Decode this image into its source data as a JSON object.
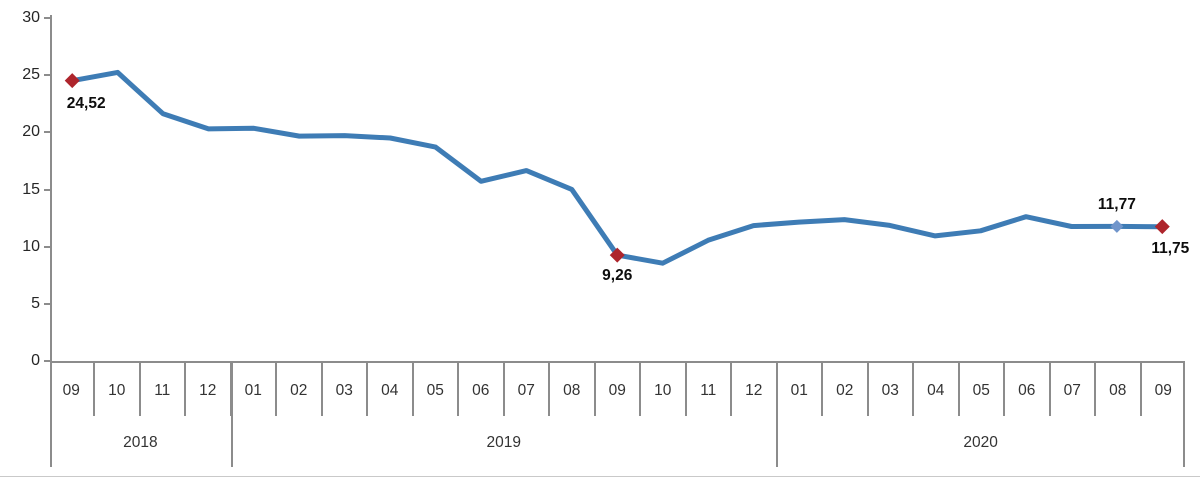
{
  "chart_data": {
    "type": "line",
    "title": "",
    "xlabel": "",
    "ylabel": "",
    "ylim": [
      0,
      30
    ],
    "yticks": [
      0,
      5,
      10,
      15,
      20,
      25,
      30
    ],
    "grid": false,
    "legend": "none",
    "colors": {
      "line": "#3E7CB5",
      "marker_red": "#AE252C",
      "marker_blue": "#7095CB",
      "axis": "#8C8C8C",
      "tick_text": "#262626",
      "label_text": "#0D0D0D"
    },
    "groups": [
      {
        "year": "2018",
        "months": [
          "09",
          "10",
          "11",
          "12"
        ]
      },
      {
        "year": "2019",
        "months": [
          "01",
          "02",
          "03",
          "04",
          "05",
          "06",
          "07",
          "08",
          "09",
          "10",
          "11",
          "12"
        ]
      },
      {
        "year": "2020",
        "months": [
          "01",
          "02",
          "03",
          "04",
          "05",
          "06",
          "07",
          "08",
          "09"
        ]
      }
    ],
    "values": [
      24.52,
      25.24,
      21.62,
      20.3,
      20.35,
      19.67,
      19.71,
      19.5,
      18.71,
      15.72,
      16.65,
      15.01,
      9.26,
      8.55,
      10.56,
      11.84,
      12.15,
      12.37,
      11.86,
      10.94,
      11.39,
      12.62,
      11.76,
      11.77,
      11.75
    ],
    "annotations": [
      {
        "index": 0,
        "label": "24,52",
        "marker": "red",
        "position": "below-left"
      },
      {
        "index": 12,
        "label": "9,26",
        "marker": "red",
        "position": "below"
      },
      {
        "index": 23,
        "label": "11,77",
        "marker": "blue",
        "position": "above"
      },
      {
        "index": 24,
        "label": "11,75",
        "marker": "red",
        "position": "below-right"
      }
    ]
  }
}
